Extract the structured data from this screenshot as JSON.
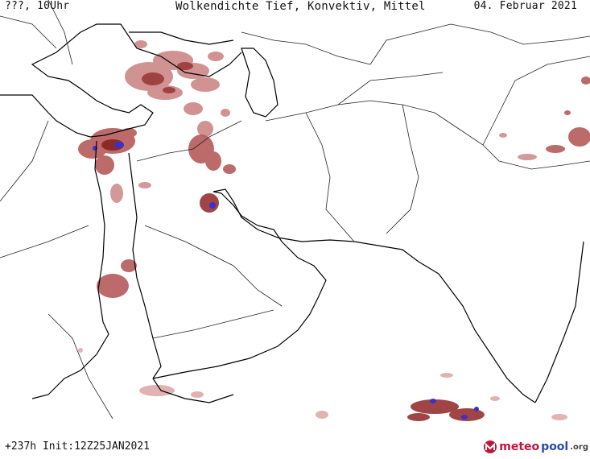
{
  "header": {
    "left": "???, 10Uhr",
    "center": "Wolkendichte   Tief, Konvektiv, Mittel",
    "right": "04. Februar 2021"
  },
  "footer": {
    "left": "+237h Init:12Z25JAN2021"
  },
  "logo": {
    "meteo": "meteo",
    "pool": "pool",
    "org": ".org"
  },
  "colors": {
    "coast": "#000000",
    "border": "#111111",
    "cloud_light": "#e6b7b7",
    "cloud_mid": "#c06a6a",
    "cloud_dark": "#8c2a2a",
    "cloud_peak": "#3a32c8"
  }
}
